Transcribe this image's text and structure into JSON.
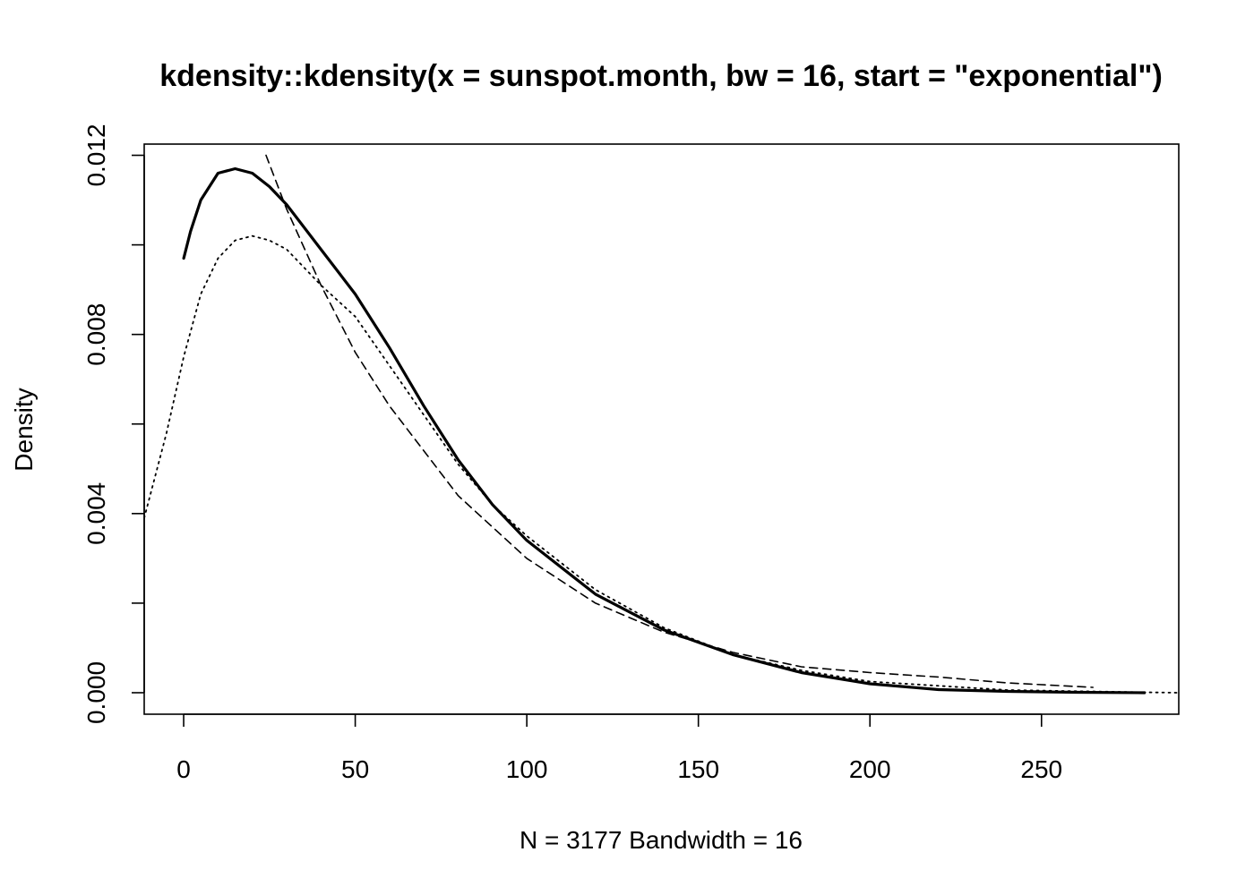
{
  "chart_data": {
    "type": "line",
    "title": "kdensity::kdensity(x = sunspot.month, bw = 16, start = \"exponential\")",
    "xlabel": "N = 3177   Bandwidth = 16",
    "ylabel": "Density",
    "xlim": [
      -11.5,
      290
    ],
    "ylim": [
      -0.00048,
      0.01225
    ],
    "x_ticks": [
      0,
      50,
      100,
      150,
      200,
      250
    ],
    "x_tick_labels": [
      "0",
      "50",
      "100",
      "150",
      "200",
      "250"
    ],
    "y_ticks": [
      0.0,
      0.002,
      0.004,
      0.006,
      0.008,
      0.01,
      0.012
    ],
    "y_tick_labels": [
      "0.000",
      "",
      "0.004",
      "",
      "0.008",
      "",
      "0.012"
    ],
    "grid": false,
    "legend": "none",
    "series": [
      {
        "style": "solid",
        "color": "#000000",
        "x": [
          0,
          2,
          5,
          10,
          15,
          20,
          25,
          30,
          40,
          50,
          60,
          70,
          80,
          90,
          100,
          120,
          140,
          160,
          180,
          200,
          220,
          240,
          260,
          280
        ],
        "y": [
          0.0097,
          0.0103,
          0.011,
          0.0116,
          0.0117,
          0.0116,
          0.0113,
          0.0109,
          0.0099,
          0.0089,
          0.0077,
          0.0064,
          0.0052,
          0.0042,
          0.0034,
          0.0022,
          0.0014,
          0.00085,
          0.00045,
          0.0002,
          7e-05,
          3e-05,
          1e-05,
          0.0
        ]
      },
      {
        "style": "dashed",
        "color": "#000000",
        "x": [
          24,
          30,
          40,
          50,
          60,
          80,
          100,
          120,
          140,
          160,
          180,
          200,
          220,
          240,
          265
        ],
        "y": [
          0.012,
          0.0108,
          0.0091,
          0.0076,
          0.0064,
          0.0044,
          0.003,
          0.002,
          0.00135,
          0.0009,
          0.00058,
          0.00045,
          0.00035,
          0.00022,
          0.00012
        ]
      },
      {
        "style": "dotted",
        "color": "#000000",
        "x": [
          -11.5,
          -5,
          0,
          5,
          10,
          15,
          20,
          25,
          30,
          40,
          50,
          60,
          70,
          80,
          90,
          100,
          120,
          140,
          160,
          180,
          200,
          240,
          280,
          290
        ],
        "y": [
          0.0039,
          0.0058,
          0.0075,
          0.0089,
          0.0097,
          0.0101,
          0.0102,
          0.0101,
          0.0099,
          0.0091,
          0.0084,
          0.0073,
          0.0062,
          0.0051,
          0.0042,
          0.0035,
          0.0023,
          0.00145,
          0.00085,
          0.0005,
          0.00025,
          6e-05,
          1e-05,
          0.0
        ]
      }
    ]
  }
}
